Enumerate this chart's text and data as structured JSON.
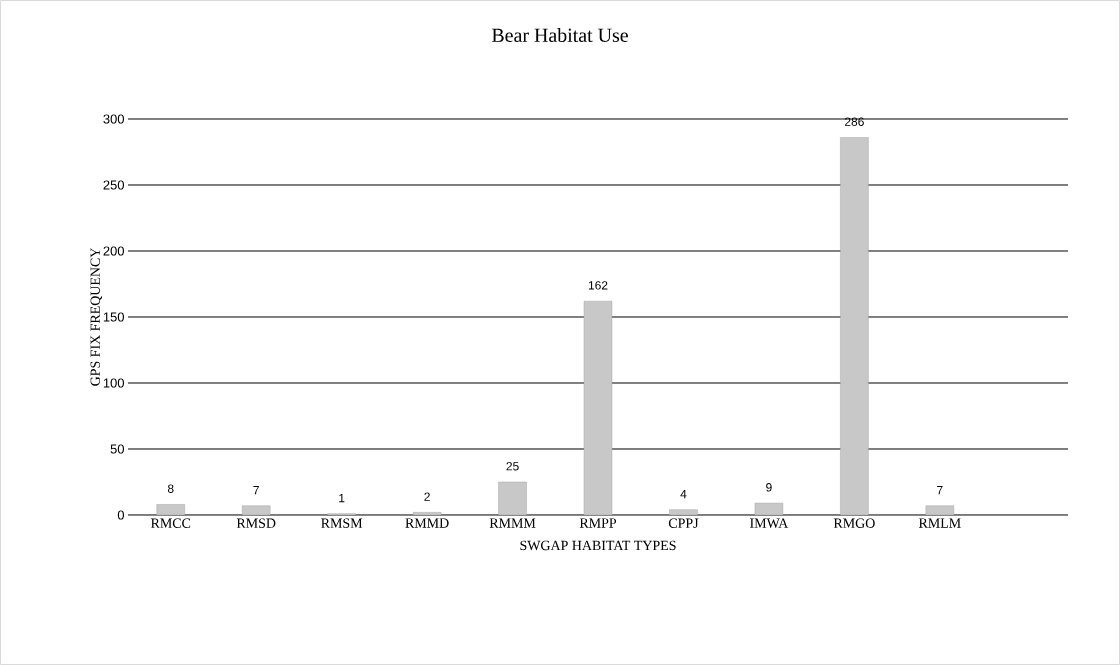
{
  "chart_data": {
    "type": "bar",
    "title": "Bear Habitat Use",
    "xlabel": "SWGAP HABITAT TYPES",
    "ylabel": "GPS FIX FREQUENCY",
    "categories": [
      "RMCC",
      "RMSD",
      "RMSM",
      "RMMD",
      "RMMM",
      "RMPP",
      "CPPJ",
      "IMWA",
      "RMGO",
      "RMLM",
      null
    ],
    "values": [
      8,
      7,
      1,
      2,
      25,
      162,
      4,
      9,
      286,
      7,
      null
    ],
    "color": "#c8c8c8",
    "ylim": [
      0,
      300
    ],
    "yticks": [
      0,
      50,
      100,
      150,
      200,
      250,
      300
    ],
    "grid": "y",
    "data_labels": true
  }
}
